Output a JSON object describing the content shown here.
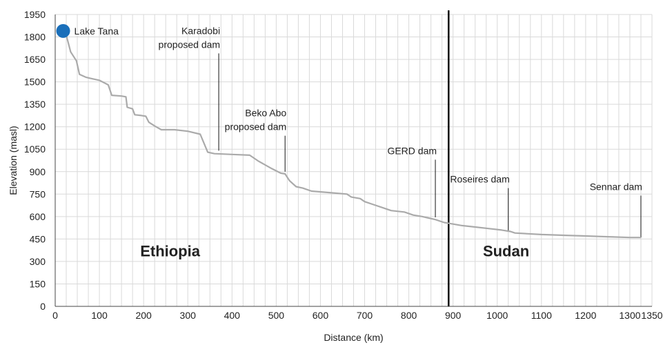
{
  "chart_data": {
    "type": "line",
    "xlabel": "Distance (km)",
    "ylabel": "Elevation (masl)",
    "xlim": [
      0,
      1350
    ],
    "ylim": [
      0,
      1950
    ],
    "x_ticks": [
      0,
      100,
      200,
      300,
      400,
      500,
      600,
      700,
      800,
      900,
      1000,
      1100,
      1200,
      1300,
      1350
    ],
    "y_ticks": [
      0,
      150,
      300,
      450,
      600,
      750,
      900,
      1050,
      1200,
      1350,
      1500,
      1650,
      1800,
      1950
    ],
    "grid": true,
    "series": [
      {
        "color": "#aaaaaa",
        "points": [
          [
            18,
            1840
          ],
          [
            26,
            1800
          ],
          [
            35,
            1700
          ],
          [
            48,
            1640
          ],
          [
            55,
            1550
          ],
          [
            70,
            1530
          ],
          [
            100,
            1510
          ],
          [
            120,
            1480
          ],
          [
            128,
            1410
          ],
          [
            150,
            1405
          ],
          [
            160,
            1400
          ],
          [
            163,
            1330
          ],
          [
            175,
            1320
          ],
          [
            180,
            1280
          ],
          [
            195,
            1275
          ],
          [
            205,
            1270
          ],
          [
            212,
            1230
          ],
          [
            225,
            1205
          ],
          [
            240,
            1180
          ],
          [
            270,
            1180
          ],
          [
            300,
            1170
          ],
          [
            328,
            1150
          ],
          [
            345,
            1030
          ],
          [
            360,
            1020
          ],
          [
            400,
            1015
          ],
          [
            440,
            1010
          ],
          [
            460,
            970
          ],
          [
            490,
            920
          ],
          [
            510,
            890
          ],
          [
            520,
            885
          ],
          [
            530,
            840
          ],
          [
            545,
            800
          ],
          [
            560,
            790
          ],
          [
            580,
            770
          ],
          [
            620,
            760
          ],
          [
            660,
            750
          ],
          [
            670,
            730
          ],
          [
            690,
            720
          ],
          [
            700,
            700
          ],
          [
            720,
            680
          ],
          [
            740,
            660
          ],
          [
            760,
            640
          ],
          [
            790,
            630
          ],
          [
            810,
            610
          ],
          [
            830,
            600
          ],
          [
            845,
            590
          ],
          [
            860,
            580
          ],
          [
            880,
            560
          ],
          [
            900,
            550
          ],
          [
            920,
            540
          ],
          [
            950,
            530
          ],
          [
            980,
            520
          ],
          [
            1010,
            510
          ],
          [
            1030,
            500
          ],
          [
            1040,
            490
          ],
          [
            1070,
            485
          ],
          [
            1100,
            480
          ],
          [
            1150,
            475
          ],
          [
            1200,
            470
          ],
          [
            1250,
            465
          ],
          [
            1300,
            460
          ],
          [
            1325,
            460
          ]
        ]
      }
    ],
    "start_marker": {
      "x": 18,
      "y": 1840,
      "label": "Lake Tana",
      "color": "#1a6fba"
    },
    "annotations": [
      {
        "lines": [
          "Karadobi",
          "proposed dam"
        ],
        "x": 370,
        "y_low": 1040,
        "y_high": 1690
      },
      {
        "lines": [
          "Beko Abo",
          "proposed dam"
        ],
        "x": 520,
        "y_low": 900,
        "y_high": 1140
      },
      {
        "lines": [
          "GERD dam"
        ],
        "x": 860,
        "y_low": 595,
        "y_high": 980
      },
      {
        "lines": [
          "Roseires dam"
        ],
        "x": 1025,
        "y_low": 500,
        "y_high": 790
      },
      {
        "lines": [
          "Sennar dam"
        ],
        "x": 1325,
        "y_low": 460,
        "y_high": 740
      }
    ],
    "border": {
      "x": 890,
      "color": "#000000"
    },
    "regions": [
      {
        "label": "Ethiopia",
        "x": 260,
        "y": 370
      },
      {
        "label": "Sudan",
        "x": 1020,
        "y": 370
      }
    ]
  }
}
